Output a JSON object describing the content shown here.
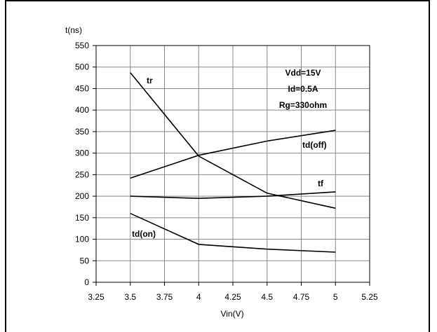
{
  "chart_data": {
    "type": "line",
    "ylabel": "t(ns)",
    "xlabel": "Vin(V)",
    "xlim": [
      3.25,
      5.25
    ],
    "ylim": [
      0,
      550
    ],
    "x_ticks": [
      3.25,
      3.5,
      3.75,
      4,
      4.25,
      4.5,
      4.75,
      5,
      5.25
    ],
    "x_tick_labels": [
      "3.25",
      "3.5",
      "3.75",
      "4",
      "4.25",
      "4.5",
      "4.75",
      "5",
      "5.25"
    ],
    "y_ticks": [
      0,
      50,
      100,
      150,
      200,
      250,
      300,
      350,
      400,
      450,
      500,
      550
    ],
    "y_tick_labels": [
      "0",
      "50",
      "100",
      "150",
      "200",
      "250",
      "300",
      "350",
      "400",
      "450",
      "500",
      "550"
    ],
    "grid": true,
    "series": [
      {
        "name": "tr",
        "x": [
          3.5,
          4,
          4.5,
          5
        ],
        "values": [
          487,
          293,
          207,
          172
        ]
      },
      {
        "name": "td(off)",
        "x": [
          3.5,
          4,
          4.5,
          5
        ],
        "values": [
          242,
          295,
          328,
          353
        ]
      },
      {
        "name": "tf",
        "x": [
          3.5,
          4,
          4.5,
          5
        ],
        "values": [
          200,
          195,
          200,
          210
        ]
      },
      {
        "name": "td(on)",
        "x": [
          3.5,
          4,
          4.5,
          5
        ],
        "values": [
          160,
          88,
          77,
          70
        ]
      }
    ],
    "annotations": [
      "Vdd=15V",
      "Id=0.5A",
      "Rg=330ohm"
    ],
    "line_color": "#000000",
    "grid_color": "#888888"
  }
}
